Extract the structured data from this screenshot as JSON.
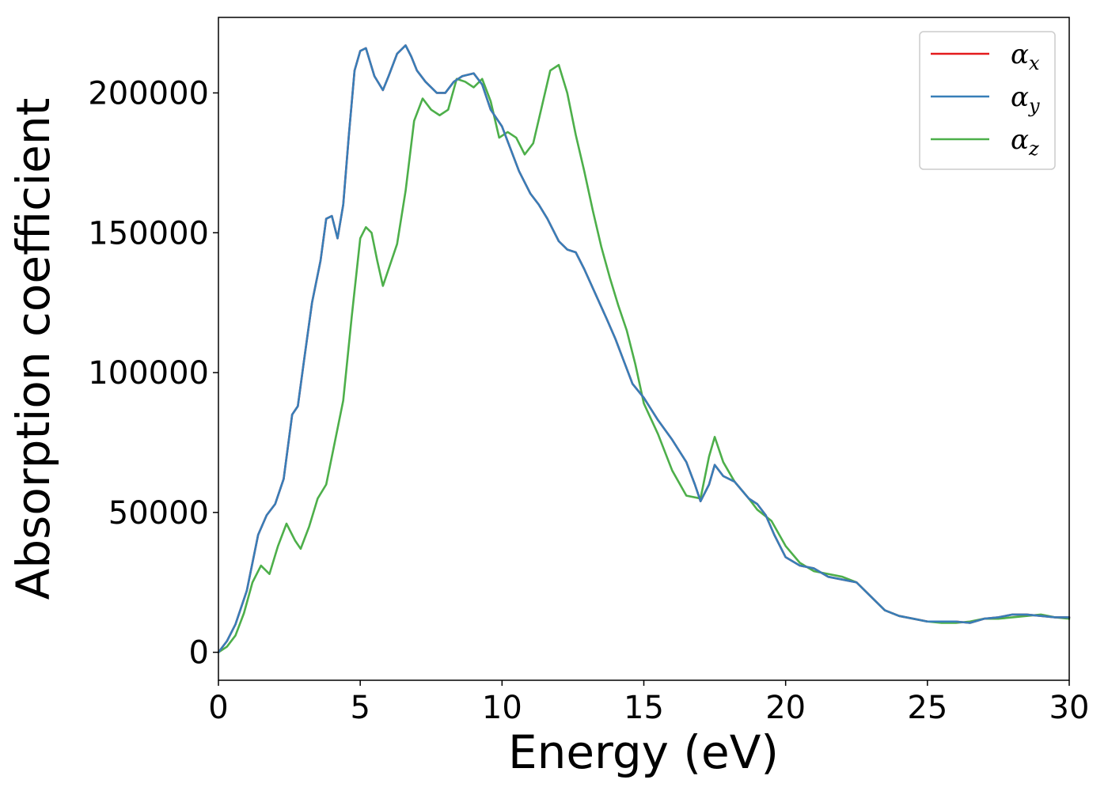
{
  "chart_data": {
    "type": "line",
    "title": "",
    "xlabel": "Energy (eV)",
    "ylabel": "Absorption coefficient",
    "xlim": [
      0,
      30
    ],
    "ylim": [
      -10000,
      227000
    ],
    "xticks": [
      0,
      5,
      10,
      15,
      20,
      25,
      30
    ],
    "xtick_labels": [
      "0",
      "5",
      "10",
      "15",
      "20",
      "25",
      "30"
    ],
    "yticks": [
      0,
      50000,
      100000,
      150000,
      200000
    ],
    "ytick_labels": [
      "0",
      "50000",
      "100000",
      "150000",
      "200000"
    ],
    "grid": false,
    "legend": {
      "placement": "top-right",
      "entries": [
        {
          "symbol": "α",
          "sub": "x",
          "color": "#e41a1c"
        },
        {
          "symbol": "α",
          "sub": "y",
          "color": "#377eb8"
        },
        {
          "symbol": "α",
          "sub": "z",
          "color": "#4daf4a"
        }
      ]
    },
    "series": [
      {
        "key": "alpha_x",
        "color": "#e41a1c",
        "x": [
          0,
          0.3,
          0.6,
          1.0,
          1.4,
          1.7,
          2.0,
          2.3,
          2.6,
          2.8,
          3.0,
          3.3,
          3.6,
          3.8,
          4.0,
          4.2,
          4.4,
          4.6,
          4.8,
          5.0,
          5.2,
          5.5,
          5.8,
          6.0,
          6.3,
          6.6,
          6.8,
          7.0,
          7.3,
          7.7,
          8.0,
          8.3,
          8.6,
          9.0,
          9.3,
          9.6,
          10.0,
          10.3,
          10.6,
          11.0,
          11.3,
          11.6,
          12.0,
          12.3,
          12.6,
          12.9,
          13.3,
          13.7,
          14.0,
          14.3,
          14.6,
          15.0,
          15.5,
          16.0,
          16.5,
          16.8,
          17.0,
          17.3,
          17.5,
          17.8,
          18.2,
          18.7,
          19.0,
          19.3,
          19.6,
          20.0,
          20.5,
          21.0,
          21.5,
          22.0,
          22.5,
          23.0,
          23.5,
          24.0,
          24.5,
          25.0,
          25.5,
          26.0,
          26.5,
          27.0,
          27.5,
          28.0,
          28.5,
          29.0,
          29.5,
          30.0
        ],
        "y": [
          0,
          4000,
          10000,
          22000,
          42000,
          49000,
          53000,
          62000,
          85000,
          88000,
          103000,
          125000,
          140000,
          155000,
          156000,
          148000,
          160000,
          185000,
          208000,
          215000,
          216000,
          206000,
          201000,
          206000,
          214000,
          217000,
          213000,
          208000,
          204000,
          200000,
          200000,
          204000,
          206000,
          207000,
          203000,
          194000,
          188000,
          180000,
          172000,
          164000,
          160000,
          155000,
          147000,
          144000,
          143000,
          137000,
          128000,
          119000,
          112000,
          104000,
          96000,
          91000,
          83000,
          76000,
          68000,
          60000,
          54000,
          60000,
          67000,
          63000,
          61000,
          55000,
          53000,
          49000,
          42000,
          34000,
          31000,
          30000,
          27000,
          26000,
          25000,
          20000,
          15000,
          13000,
          12000,
          11000,
          11000,
          11000,
          10500,
          12000,
          12500,
          13500,
          13500,
          13000,
          12500,
          12500
        ]
      },
      {
        "key": "alpha_y",
        "color": "#377eb8",
        "x": [
          0,
          0.3,
          0.6,
          1.0,
          1.4,
          1.7,
          2.0,
          2.3,
          2.6,
          2.8,
          3.0,
          3.3,
          3.6,
          3.8,
          4.0,
          4.2,
          4.4,
          4.6,
          4.8,
          5.0,
          5.2,
          5.5,
          5.8,
          6.0,
          6.3,
          6.6,
          6.8,
          7.0,
          7.3,
          7.7,
          8.0,
          8.3,
          8.6,
          9.0,
          9.3,
          9.6,
          10.0,
          10.3,
          10.6,
          11.0,
          11.3,
          11.6,
          12.0,
          12.3,
          12.6,
          12.9,
          13.3,
          13.7,
          14.0,
          14.3,
          14.6,
          15.0,
          15.5,
          16.0,
          16.5,
          16.8,
          17.0,
          17.3,
          17.5,
          17.8,
          18.2,
          18.7,
          19.0,
          19.3,
          19.6,
          20.0,
          20.5,
          21.0,
          21.5,
          22.0,
          22.5,
          23.0,
          23.5,
          24.0,
          24.5,
          25.0,
          25.5,
          26.0,
          26.5,
          27.0,
          27.5,
          28.0,
          28.5,
          29.0,
          29.5,
          30.0
        ],
        "y": [
          0,
          4000,
          10000,
          22000,
          42000,
          49000,
          53000,
          62000,
          85000,
          88000,
          103000,
          125000,
          140000,
          155000,
          156000,
          148000,
          160000,
          185000,
          208000,
          215000,
          216000,
          206000,
          201000,
          206000,
          214000,
          217000,
          213000,
          208000,
          204000,
          200000,
          200000,
          204000,
          206000,
          207000,
          203000,
          194000,
          188000,
          180000,
          172000,
          164000,
          160000,
          155000,
          147000,
          144000,
          143000,
          137000,
          128000,
          119000,
          112000,
          104000,
          96000,
          91000,
          83000,
          76000,
          68000,
          60000,
          54000,
          60000,
          67000,
          63000,
          61000,
          55000,
          53000,
          49000,
          42000,
          34000,
          31000,
          30000,
          27000,
          26000,
          25000,
          20000,
          15000,
          13000,
          12000,
          11000,
          11000,
          11000,
          10500,
          12000,
          12500,
          13500,
          13500,
          13000,
          12500,
          12500
        ]
      },
      {
        "key": "alpha_z",
        "color": "#4daf4a",
        "x": [
          0,
          0.3,
          0.6,
          0.9,
          1.2,
          1.5,
          1.8,
          2.1,
          2.4,
          2.7,
          2.9,
          3.2,
          3.5,
          3.8,
          4.1,
          4.4,
          4.7,
          5.0,
          5.2,
          5.4,
          5.6,
          5.8,
          6.0,
          6.3,
          6.6,
          6.9,
          7.2,
          7.5,
          7.8,
          8.1,
          8.4,
          8.7,
          9.0,
          9.3,
          9.6,
          9.9,
          10.2,
          10.5,
          10.8,
          11.1,
          11.4,
          11.7,
          12.0,
          12.3,
          12.6,
          12.9,
          13.2,
          13.5,
          13.8,
          14.1,
          14.4,
          14.7,
          15.0,
          15.5,
          16.0,
          16.5,
          17.0,
          17.3,
          17.5,
          17.8,
          18.2,
          18.7,
          19.0,
          19.5,
          20.0,
          20.5,
          21.0,
          21.5,
          22.0,
          22.5,
          23.0,
          23.5,
          24.0,
          24.5,
          25.0,
          25.5,
          26.0,
          26.5,
          27.0,
          27.5,
          28.0,
          28.5,
          29.0,
          29.5,
          30.0
        ],
        "y": [
          0,
          2000,
          6000,
          14000,
          25000,
          31000,
          28000,
          38000,
          46000,
          40000,
          37000,
          45000,
          55000,
          60000,
          75000,
          90000,
          120000,
          148000,
          152000,
          150000,
          140000,
          131000,
          137000,
          146000,
          165000,
          190000,
          198000,
          194000,
          192000,
          194000,
          205000,
          204000,
          202000,
          205000,
          197000,
          184000,
          186000,
          184000,
          178000,
          182000,
          195000,
          208000,
          210000,
          200000,
          185000,
          172000,
          158000,
          145000,
          134000,
          124000,
          115000,
          103000,
          89000,
          78000,
          65000,
          56000,
          55000,
          70000,
          77000,
          68000,
          61000,
          55000,
          51000,
          47000,
          38000,
          32000,
          29000,
          28000,
          27000,
          25000,
          20000,
          15000,
          13000,
          12000,
          11000,
          10500,
          10500,
          11000,
          12000,
          12000,
          12500,
          13000,
          13500,
          12500,
          12000
        ]
      }
    ]
  }
}
